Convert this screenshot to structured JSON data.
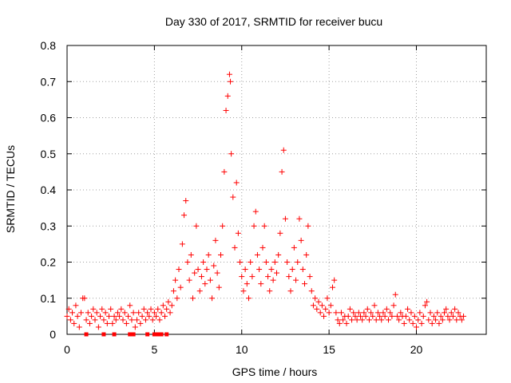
{
  "chart_data": {
    "type": "scatter",
    "title": "Day 330 of 2017, SRMTID for receiver bucu",
    "xlabel": "GPS time / hours",
    "ylabel": "SRMTID / TECUs",
    "xlim": [
      0,
      24
    ],
    "ylim": [
      0,
      0.8
    ],
    "xticks": [
      0,
      5,
      10,
      15,
      20
    ],
    "xtick_labels": [
      "0",
      "5",
      "10",
      "15",
      "20"
    ],
    "yticks": [
      0,
      0.1,
      0.2,
      0.3,
      0.4,
      0.5,
      0.6,
      0.7,
      0.8
    ],
    "ytick_labels": [
      "0",
      "0.1",
      "0.2",
      "0.3",
      "0.4",
      "0.5",
      "0.6",
      "0.7",
      "0.8"
    ],
    "grid": true,
    "marker": "plus",
    "color": "#ff0000",
    "series": [
      {
        "name": "SRMTID",
        "points": [
          [
            0.0,
            0.05
          ],
          [
            0.1,
            0.07
          ],
          [
            0.2,
            0.04
          ],
          [
            0.3,
            0.06
          ],
          [
            0.4,
            0.03
          ],
          [
            0.5,
            0.08
          ],
          [
            0.6,
            0.05
          ],
          [
            0.7,
            0.02
          ],
          [
            0.8,
            0.06
          ],
          [
            0.9,
            0.1
          ],
          [
            1.0,
            0.1
          ],
          [
            1.1,
            0.04
          ],
          [
            1.2,
            0.06
          ],
          [
            1.3,
            0.03
          ],
          [
            1.4,
            0.05
          ],
          [
            1.5,
            0.07
          ],
          [
            1.6,
            0.04
          ],
          [
            1.7,
            0.06
          ],
          [
            1.8,
            0.02
          ],
          [
            1.9,
            0.05
          ],
          [
            2.0,
            0.07
          ],
          [
            2.1,
            0.04
          ],
          [
            2.2,
            0.06
          ],
          [
            2.3,
            0.03
          ],
          [
            2.4,
            0.05
          ],
          [
            2.5,
            0.07
          ],
          [
            2.6,
            0.03
          ],
          [
            2.7,
            0.05
          ],
          [
            2.8,
            0.04
          ],
          [
            2.9,
            0.06
          ],
          [
            3.0,
            0.05
          ],
          [
            3.1,
            0.07
          ],
          [
            3.2,
            0.04
          ],
          [
            3.3,
            0.06
          ],
          [
            3.4,
            0.03
          ],
          [
            3.5,
            0.05
          ],
          [
            3.6,
            0.08
          ],
          [
            3.7,
            0.04
          ],
          [
            3.8,
            0.06
          ],
          [
            3.9,
            0.02
          ],
          [
            4.0,
            0.04
          ],
          [
            4.1,
            0.06
          ],
          [
            4.2,
            0.03
          ],
          [
            4.3,
            0.05
          ],
          [
            4.4,
            0.07
          ],
          [
            4.5,
            0.04
          ],
          [
            4.6,
            0.06
          ],
          [
            4.7,
            0.05
          ],
          [
            4.8,
            0.07
          ],
          [
            4.9,
            0.04
          ],
          [
            5.0,
            0.06
          ],
          [
            5.1,
            0.05
          ],
          [
            5.2,
            0.07
          ],
          [
            5.3,
            0.04
          ],
          [
            5.4,
            0.06
          ],
          [
            5.5,
            0.08
          ],
          [
            5.6,
            0.05
          ],
          [
            5.7,
            0.07
          ],
          [
            5.8,
            0.09
          ],
          [
            5.9,
            0.06
          ],
          [
            6.0,
            0.08
          ],
          [
            6.1,
            0.12
          ],
          [
            6.2,
            0.15
          ],
          [
            6.3,
            0.1
          ],
          [
            6.4,
            0.18
          ],
          [
            6.5,
            0.13
          ],
          [
            6.6,
            0.25
          ],
          [
            6.7,
            0.33
          ],
          [
            6.8,
            0.37
          ],
          [
            6.9,
            0.2
          ],
          [
            7.0,
            0.15
          ],
          [
            7.1,
            0.22
          ],
          [
            7.2,
            0.1
          ],
          [
            7.3,
            0.17
          ],
          [
            7.4,
            0.3
          ],
          [
            7.5,
            0.18
          ],
          [
            7.6,
            0.12
          ],
          [
            7.7,
            0.16
          ],
          [
            7.8,
            0.2
          ],
          [
            7.9,
            0.14
          ],
          [
            8.0,
            0.18
          ],
          [
            8.1,
            0.22
          ],
          [
            8.2,
            0.15
          ],
          [
            8.3,
            0.1
          ],
          [
            8.4,
            0.19
          ],
          [
            8.5,
            0.26
          ],
          [
            8.6,
            0.17
          ],
          [
            8.7,
            0.13
          ],
          [
            8.8,
            0.22
          ],
          [
            8.9,
            0.3
          ],
          [
            9.0,
            0.45
          ],
          [
            9.1,
            0.62
          ],
          [
            9.2,
            0.66
          ],
          [
            9.3,
            0.72
          ],
          [
            9.35,
            0.7
          ],
          [
            9.4,
            0.5
          ],
          [
            9.5,
            0.38
          ],
          [
            9.6,
            0.24
          ],
          [
            9.7,
            0.42
          ],
          [
            9.8,
            0.28
          ],
          [
            9.9,
            0.2
          ],
          [
            10.0,
            0.16
          ],
          [
            10.1,
            0.12
          ],
          [
            10.2,
            0.18
          ],
          [
            10.3,
            0.14
          ],
          [
            10.4,
            0.1
          ],
          [
            10.5,
            0.2
          ],
          [
            10.6,
            0.16
          ],
          [
            10.7,
            0.3
          ],
          [
            10.8,
            0.34
          ],
          [
            10.9,
            0.22
          ],
          [
            11.0,
            0.18
          ],
          [
            11.1,
            0.14
          ],
          [
            11.2,
            0.24
          ],
          [
            11.3,
            0.3
          ],
          [
            11.4,
            0.2
          ],
          [
            11.5,
            0.16
          ],
          [
            11.6,
            0.12
          ],
          [
            11.7,
            0.18
          ],
          [
            11.8,
            0.15
          ],
          [
            11.9,
            0.2
          ],
          [
            12.0,
            0.17
          ],
          [
            12.1,
            0.22
          ],
          [
            12.2,
            0.28
          ],
          [
            12.3,
            0.45
          ],
          [
            12.4,
            0.51
          ],
          [
            12.5,
            0.32
          ],
          [
            12.6,
            0.2
          ],
          [
            12.7,
            0.16
          ],
          [
            12.8,
            0.12
          ],
          [
            12.9,
            0.18
          ],
          [
            13.0,
            0.24
          ],
          [
            13.1,
            0.15
          ],
          [
            13.2,
            0.2
          ],
          [
            13.3,
            0.32
          ],
          [
            13.4,
            0.26
          ],
          [
            13.5,
            0.18
          ],
          [
            13.6,
            0.14
          ],
          [
            13.7,
            0.22
          ],
          [
            13.8,
            0.3
          ],
          [
            13.9,
            0.16
          ],
          [
            14.0,
            0.12
          ],
          [
            14.1,
            0.08
          ],
          [
            14.2,
            0.1
          ],
          [
            14.3,
            0.07
          ],
          [
            14.4,
            0.09
          ],
          [
            14.5,
            0.06
          ],
          [
            14.6,
            0.08
          ],
          [
            14.7,
            0.05
          ],
          [
            14.8,
            0.07
          ],
          [
            14.9,
            0.1
          ],
          [
            15.0,
            0.06
          ],
          [
            15.1,
            0.08
          ],
          [
            15.2,
            0.13
          ],
          [
            15.3,
            0.15
          ],
          [
            15.4,
            0.06
          ],
          [
            15.5,
            0.04
          ],
          [
            15.6,
            0.03
          ],
          [
            15.7,
            0.06
          ],
          [
            15.8,
            0.04
          ],
          [
            15.9,
            0.05
          ],
          [
            16.0,
            0.03
          ],
          [
            16.1,
            0.05
          ],
          [
            16.2,
            0.07
          ],
          [
            16.3,
            0.04
          ],
          [
            16.4,
            0.06
          ],
          [
            16.5,
            0.05
          ],
          [
            16.6,
            0.04
          ],
          [
            16.7,
            0.06
          ],
          [
            16.8,
            0.05
          ],
          [
            16.9,
            0.04
          ],
          [
            17.0,
            0.06
          ],
          [
            17.1,
            0.05
          ],
          [
            17.2,
            0.07
          ],
          [
            17.3,
            0.04
          ],
          [
            17.4,
            0.06
          ],
          [
            17.5,
            0.05
          ],
          [
            17.6,
            0.08
          ],
          [
            17.7,
            0.04
          ],
          [
            17.8,
            0.06
          ],
          [
            17.9,
            0.05
          ],
          [
            18.0,
            0.04
          ],
          [
            18.1,
            0.06
          ],
          [
            18.2,
            0.05
          ],
          [
            18.3,
            0.07
          ],
          [
            18.4,
            0.04
          ],
          [
            18.5,
            0.06
          ],
          [
            18.6,
            0.05
          ],
          [
            18.7,
            0.08
          ],
          [
            18.8,
            0.11
          ],
          [
            18.9,
            0.05
          ],
          [
            19.0,
            0.04
          ],
          [
            19.1,
            0.06
          ],
          [
            19.2,
            0.05
          ],
          [
            19.3,
            0.03
          ],
          [
            19.4,
            0.05
          ],
          [
            19.5,
            0.07
          ],
          [
            19.6,
            0.04
          ],
          [
            19.7,
            0.06
          ],
          [
            19.8,
            0.03
          ],
          [
            19.9,
            0.05
          ],
          [
            20.0,
            0.02
          ],
          [
            20.1,
            0.04
          ],
          [
            20.2,
            0.06
          ],
          [
            20.3,
            0.03
          ],
          [
            20.4,
            0.05
          ],
          [
            20.5,
            0.08
          ],
          [
            20.6,
            0.09
          ],
          [
            20.7,
            0.04
          ],
          [
            20.8,
            0.06
          ],
          [
            20.9,
            0.03
          ],
          [
            21.0,
            0.05
          ],
          [
            21.1,
            0.04
          ],
          [
            21.2,
            0.06
          ],
          [
            21.3,
            0.03
          ],
          [
            21.4,
            0.05
          ],
          [
            21.5,
            0.04
          ],
          [
            21.6,
            0.06
          ],
          [
            21.7,
            0.07
          ],
          [
            21.8,
            0.05
          ],
          [
            21.9,
            0.04
          ],
          [
            22.0,
            0.06
          ],
          [
            22.1,
            0.05
          ],
          [
            22.2,
            0.07
          ],
          [
            22.3,
            0.04
          ],
          [
            22.4,
            0.06
          ],
          [
            22.5,
            0.05
          ],
          [
            22.6,
            0.04
          ],
          [
            22.7,
            0.05
          ],
          [
            1.1,
            0.0
          ],
          [
            2.1,
            0.0
          ],
          [
            2.7,
            0.0
          ],
          [
            3.6,
            0.0
          ],
          [
            3.8,
            0.0
          ],
          [
            4.6,
            0.0
          ],
          [
            5.0,
            0.0
          ],
          [
            5.2,
            0.0
          ],
          [
            5.4,
            0.0
          ],
          [
            5.7,
            0.0
          ]
        ]
      }
    ]
  }
}
